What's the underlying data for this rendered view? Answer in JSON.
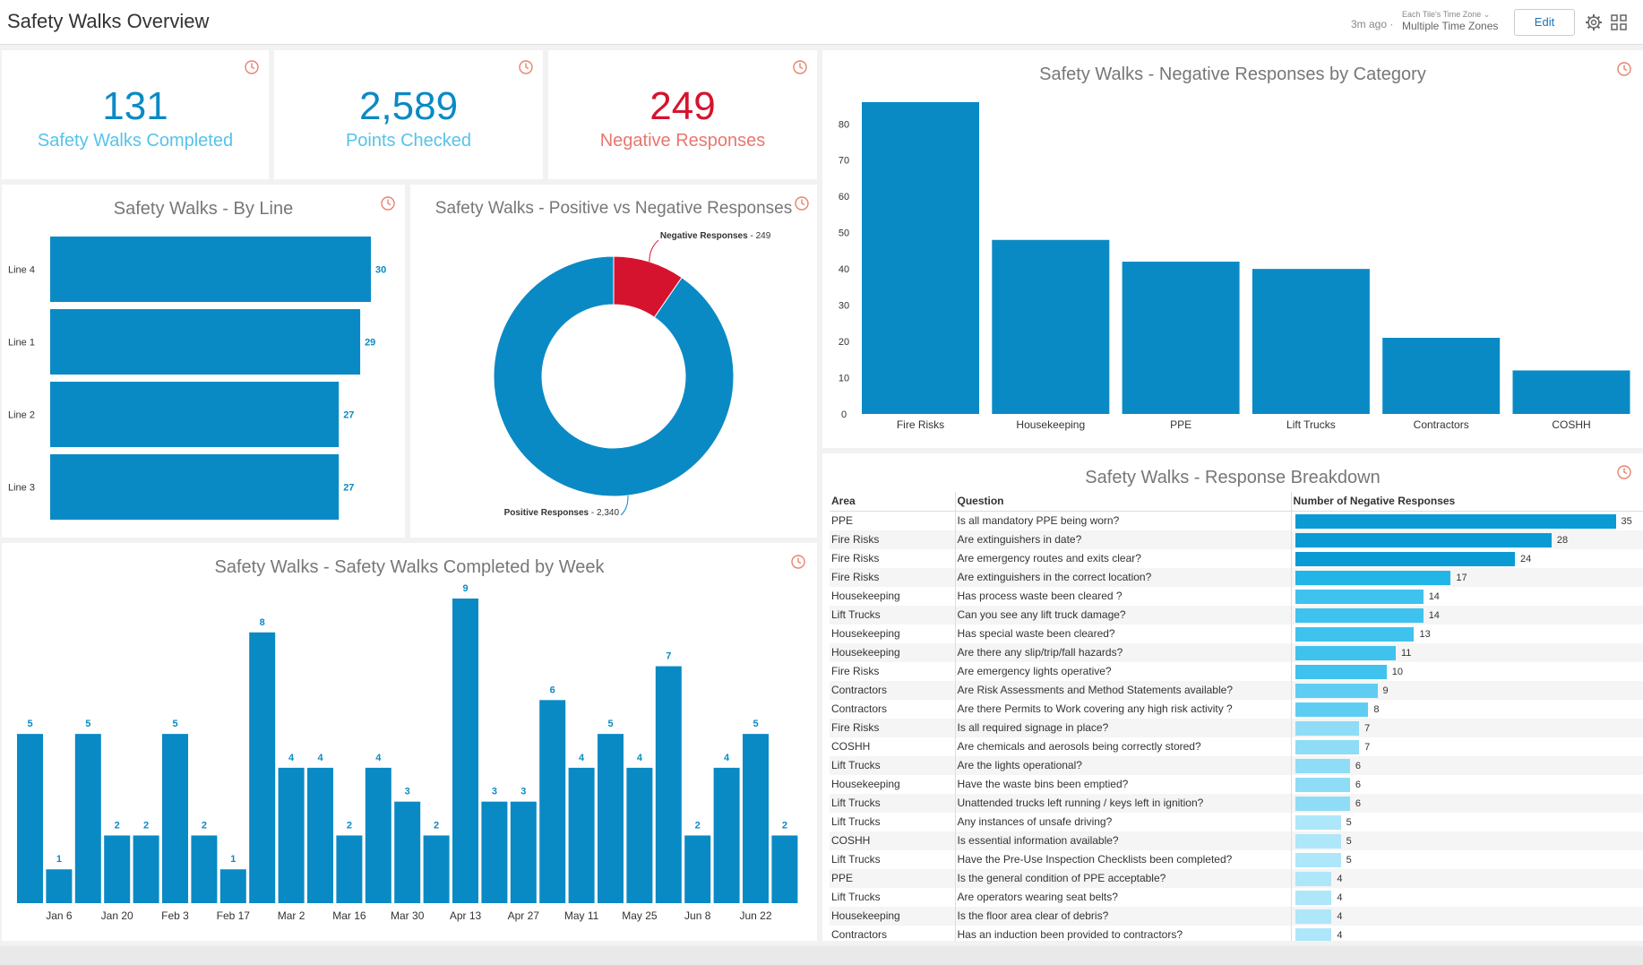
{
  "header": {
    "title": "Safety Walks Overview",
    "last_updated": "3m ago",
    "timezone_label": "Each Tile's Time Zone",
    "timezone_value": "Multiple Time Zones",
    "edit_label": "Edit",
    "separator": "·"
  },
  "kpis": [
    {
      "value": "131",
      "label": "Safety Walks Completed",
      "color": "#0a8ac4",
      "label_color": "#55c3ea"
    },
    {
      "value": "2,589",
      "label": "Points Checked",
      "color": "#0a8ac4",
      "label_color": "#55c3ea"
    },
    {
      "value": "249",
      "label": "Negative Responses",
      "color": "#d6132e",
      "label_color": "#e8776f"
    }
  ],
  "by_line": {
    "title": "Safety Walks - By Line",
    "chart_data": {
      "type": "bar",
      "orientation": "horizontal",
      "categories": [
        "Line 4",
        "Line 1",
        "Line 2",
        "Line 3"
      ],
      "values": [
        30,
        29,
        27,
        27
      ],
      "xlim": [
        0,
        30
      ]
    }
  },
  "pos_neg": {
    "title": "Safety Walks - Positive vs Negative Responses",
    "chart_data": {
      "type": "pie",
      "donut": true,
      "slices": [
        {
          "label": "Negative Responses",
          "value": 249,
          "display": "249",
          "color": "#d6132e"
        },
        {
          "label": "Positive Responses",
          "value": 2340,
          "display": "2,340",
          "color": "#0a8ac4"
        }
      ]
    },
    "label_separator": " - "
  },
  "by_category": {
    "title": "Safety Walks - Negative Responses by Category",
    "chart_data": {
      "type": "bar",
      "categories": [
        "Fire Risks",
        "Housekeeping",
        "PPE",
        "Lift Trucks",
        "Contractors",
        "COSHH"
      ],
      "values": [
        86,
        48,
        42,
        40,
        21,
        12
      ],
      "ylim": [
        0,
        86
      ],
      "yticks": [
        0,
        10,
        20,
        30,
        40,
        50,
        60,
        70,
        80
      ]
    }
  },
  "by_week": {
    "title": "Safety Walks - Safety Walks Completed by Week",
    "chart_data": {
      "type": "bar",
      "values": [
        5,
        1,
        5,
        2,
        2,
        5,
        2,
        1,
        8,
        4,
        4,
        2,
        4,
        3,
        2,
        9,
        3,
        3,
        6,
        4,
        5,
        4,
        7,
        2,
        4,
        5,
        2
      ],
      "tick_labels": [
        "Jan 6",
        "Jan 20",
        "Feb 3",
        "Feb 17",
        "Mar 2",
        "Mar 16",
        "Mar 30",
        "Apr 13",
        "Apr 27",
        "May 11",
        "May 25",
        "Jun 8",
        "Jun 22"
      ],
      "ylim": [
        0,
        9
      ]
    }
  },
  "breakdown": {
    "title": "Safety Walks - Response Breakdown",
    "columns": [
      "Area",
      "Question",
      "Number of Negative Responses"
    ],
    "max": 35,
    "rows": [
      {
        "area": "PPE",
        "question": "Is all mandatory PPE being worn?",
        "count": 35
      },
      {
        "area": "Fire Risks",
        "question": "Are extinguishers in date?",
        "count": 28
      },
      {
        "area": "Fire Risks",
        "question": "Are emergency routes and exits clear?",
        "count": 24
      },
      {
        "area": "Fire Risks",
        "question": "Are extinguishers in the correct location?",
        "count": 17
      },
      {
        "area": "Housekeeping",
        "question": "Has process waste been cleared ?",
        "count": 14
      },
      {
        "area": "Lift Trucks",
        "question": "Can you see any lift truck damage?",
        "count": 14
      },
      {
        "area": "Housekeeping",
        "question": "Has special waste been cleared?",
        "count": 13
      },
      {
        "area": "Housekeeping",
        "question": "Are there any slip/trip/fall hazards?",
        "count": 11
      },
      {
        "area": "Fire Risks",
        "question": "Are emergency lights operative?",
        "count": 10
      },
      {
        "area": "Contractors",
        "question": "Are Risk Assessments and Method Statements available?",
        "count": 9
      },
      {
        "area": "Contractors",
        "question": "Are there Permits to Work covering any high risk activity ?",
        "count": 8
      },
      {
        "area": "Fire Risks",
        "question": "Is all required signage in place?",
        "count": 7
      },
      {
        "area": "COSHH",
        "question": "Are chemicals and aerosols being correctly stored?",
        "count": 7
      },
      {
        "area": "Lift Trucks",
        "question": "Are the lights operational?",
        "count": 6
      },
      {
        "area": "Housekeeping",
        "question": "Have the waste bins been emptied?",
        "count": 6
      },
      {
        "area": "Lift Trucks",
        "question": "Unattended trucks left running / keys left in ignition?",
        "count": 6
      },
      {
        "area": "Lift Trucks",
        "question": "Any instances of unsafe driving?",
        "count": 5
      },
      {
        "area": "COSHH",
        "question": "Is essential information available?",
        "count": 5
      },
      {
        "area": "Lift Trucks",
        "question": "Have the Pre-Use Inspection Checklists been completed?",
        "count": 5
      },
      {
        "area": "PPE",
        "question": "Is the general condition of PPE acceptable?",
        "count": 4
      },
      {
        "area": "Lift Trucks",
        "question": "Are operators wearing seat belts?",
        "count": 4
      },
      {
        "area": "Housekeeping",
        "question": "Is the floor area clear of debris?",
        "count": 4
      },
      {
        "area": "Contractors",
        "question": "Has an induction been provided to contractors?",
        "count": 4
      }
    ]
  },
  "colors": {
    "primary": "#0a8ac4",
    "negative": "#d6132e",
    "icon": "#e8826e"
  }
}
